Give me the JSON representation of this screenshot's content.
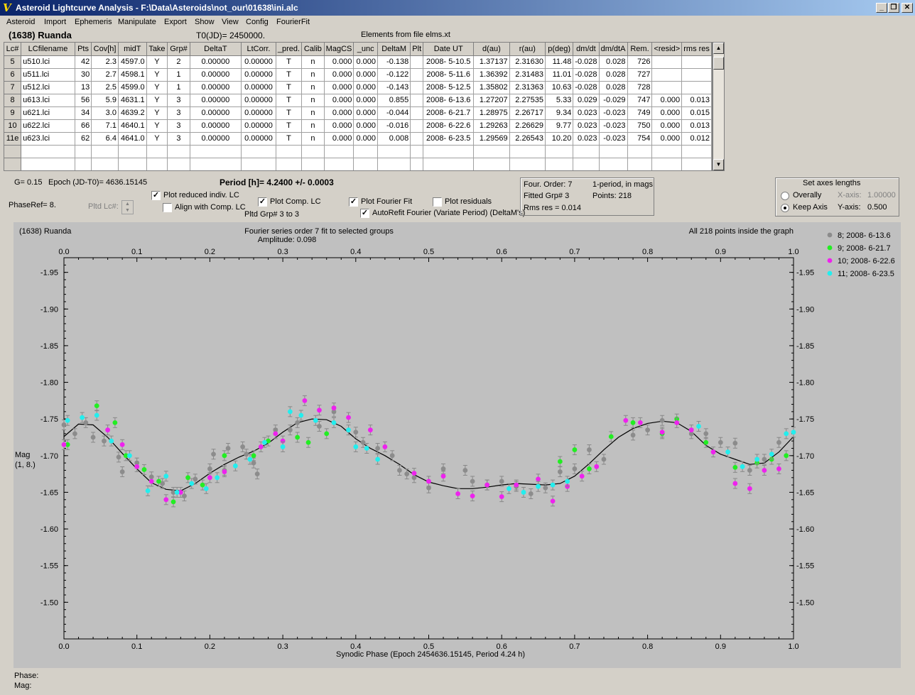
{
  "window": {
    "title": "Asteroid Lightcurve Analysis - F:\\Data\\Asteroids\\not_our\\01638\\ini.alc"
  },
  "menu": [
    "Asteroid",
    "Import",
    "Ephemeris",
    "Manipulate",
    "Export",
    "Show",
    "View",
    "Config",
    "FourierFit"
  ],
  "header": {
    "asteroid": "(1638) Ruanda",
    "t0": "T0(JD)= 2450000.",
    "elements": "Elements from file elms.xt"
  },
  "table": {
    "columns": [
      "Lc#",
      "LCfilename",
      "Pts",
      "Cov[h]",
      "midT",
      "Take",
      "Grp#",
      "DeltaT",
      "LtCorr.",
      "_pred.",
      "Calib",
      "MagCS",
      "_unc",
      "DeltaM",
      "Plt",
      "Date UT",
      "d(au)",
      "r(au)",
      "p(deg)",
      "dm/dt",
      "dm/dtA",
      "Rem.",
      "<resid>",
      "rms res"
    ],
    "rows": [
      [
        "5",
        "u510.lci",
        "42",
        "2.3",
        "4597.0",
        "Y",
        "2",
        "0.00000",
        "0.00000",
        "T",
        "n",
        "0.000",
        "0.000",
        "-0.138",
        "",
        "2008- 5-10.5",
        "1.37137",
        "2.31630",
        "11.48",
        "-0.028",
        "0.028",
        "726",
        "",
        ""
      ],
      [
        "6",
        "u511.lci",
        "30",
        "2.7",
        "4598.1",
        "Y",
        "1",
        "0.00000",
        "0.00000",
        "T",
        "n",
        "0.000",
        "0.000",
        "-0.122",
        "",
        "2008- 5-11.6",
        "1.36392",
        "2.31483",
        "11.01",
        "-0.028",
        "0.028",
        "727",
        "",
        ""
      ],
      [
        "7",
        "u512.lci",
        "13",
        "2.5",
        "4599.0",
        "Y",
        "1",
        "0.00000",
        "0.00000",
        "T",
        "n",
        "0.000",
        "0.000",
        "-0.143",
        "",
        "2008- 5-12.5",
        "1.35802",
        "2.31363",
        "10.63",
        "-0.028",
        "0.028",
        "728",
        "",
        ""
      ],
      [
        "8",
        "u613.lci",
        "56",
        "5.9",
        "4631.1",
        "Y",
        "3",
        "0.00000",
        "0.00000",
        "T",
        "n",
        "0.000",
        "0.000",
        "0.855",
        "",
        "2008- 6-13.6",
        "1.27207",
        "2.27535",
        "5.33",
        "0.029",
        "-0.029",
        "747",
        "0.000",
        "0.013"
      ],
      [
        "9",
        "u621.lci",
        "34",
        "3.0",
        "4639.2",
        "Y",
        "3",
        "0.00000",
        "0.00000",
        "T",
        "n",
        "0.000",
        "0.000",
        "-0.044",
        "",
        "2008- 6-21.7",
        "1.28975",
        "2.26717",
        "9.34",
        "0.023",
        "-0.023",
        "749",
        "0.000",
        "0.015"
      ],
      [
        "10",
        "u622.lci",
        "66",
        "7.1",
        "4640.1",
        "Y",
        "3",
        "0.00000",
        "0.00000",
        "T",
        "n",
        "0.000",
        "0.000",
        "-0.016",
        "",
        "2008- 6-22.6",
        "1.29263",
        "2.26629",
        "9.77",
        "0.023",
        "-0.023",
        "750",
        "0.000",
        "0.013"
      ],
      [
        "11e",
        "u623.lci",
        "62",
        "6.4",
        "4641.0",
        "Y",
        "3",
        "0.00000",
        "0.00000",
        "T",
        "n",
        "0.000",
        "0.000",
        "0.008",
        "",
        "2008- 6-23.5",
        "1.29569",
        "2.26543",
        "10.20",
        "0.023",
        "-0.023",
        "754",
        "0.000",
        "0.012"
      ],
      [
        "",
        "",
        "",
        "",
        "",
        "",
        "",
        "",
        "",
        "",
        "",
        "",
        "",
        "",
        "",
        "",
        "",
        "",
        "",
        "",
        "",
        "",
        "",
        ""
      ],
      [
        "",
        "",
        "",
        "",
        "",
        "",
        "",
        "",
        "",
        "",
        "",
        "",
        "",
        "",
        "",
        "",
        "",
        "",
        "",
        "",
        "",
        "",
        "",
        ""
      ]
    ]
  },
  "controls": {
    "g": "G= 0.15",
    "epoch": "Epoch (JD-T0)= 4636.15145",
    "period": "Period [h]= 4.2400 +/- 0.0003",
    "phaseref": "PhaseRef= 8.",
    "pltd_lc": "Pltd Lc#:",
    "plot_reduced": "Plot reduced indiv. LC",
    "align_comp": "Align with Comp. LC",
    "plot_comp": "Plot Comp. LC",
    "pltd_grp": "Pltd Grp#  3  to   3",
    "plot_fourier": "Plot Fourier Fit",
    "plot_resid": "Plot residuals",
    "autorefit": "AutoRefit Fourier (Variate Period) (DeltaM's)"
  },
  "fourier_info": {
    "order": "Four. Order:  7",
    "mode": "1-period, in mags",
    "fitted": "Fitted Grp# 3",
    "points": "Points: 218",
    "rms": "Rms res     = 0.014"
  },
  "axes_box": {
    "title": "Set axes lengths",
    "overally": "Overally",
    "keep": "Keep Axis",
    "xaxis_label": "X-axis:",
    "xaxis_value": "1.00000",
    "yaxis_label": "Y-axis:",
    "yaxis_value": "0.500"
  },
  "status": {
    "phase": "Phase:",
    "mag": "Mag:"
  },
  "colors": {
    "grey": "#8c8c8c",
    "green": "#22ee22",
    "magenta": "#ee22ee",
    "cyan": "#22eeee"
  },
  "chart_data": {
    "type": "scatter",
    "title": "(1638) Ruanda",
    "subtitle": "Fourier series order 7 fit to selected groups",
    "amplitude": "Amplitude: 0.098",
    "info": "All 218 points inside the graph",
    "xlabel": "Synodic Phase (Epoch 2454636.15145, Period 4.24 h)",
    "ylabel": "Mag",
    "ylabel2": "(1, 8.)",
    "xlim": [
      0,
      1
    ],
    "ylim": [
      -1.45,
      -1.97
    ],
    "xticks": [
      "0.0",
      "0.1",
      "0.2",
      "0.3",
      "0.4",
      "0.5",
      "0.6",
      "0.7",
      "0.8",
      "0.9",
      "1.0"
    ],
    "yticks": [
      "-1.95",
      "-1.90",
      "-1.85",
      "-1.80",
      "-1.75",
      "-1.70",
      "-1.65",
      "-1.60",
      "-1.55",
      "-1.50"
    ],
    "legend": [
      "8; 2008- 6-13.6",
      "9; 2008- 6-21.7",
      "10; 2008- 6-22.6",
      "11; 2008- 6-23.5"
    ],
    "fit": [
      [
        0,
        -1.726
      ],
      [
        0.02,
        -1.743
      ],
      [
        0.04,
        -1.742
      ],
      [
        0.06,
        -1.725
      ],
      [
        0.08,
        -1.703
      ],
      [
        0.1,
        -1.682
      ],
      [
        0.12,
        -1.663
      ],
      [
        0.14,
        -1.654
      ],
      [
        0.16,
        -1.652
      ],
      [
        0.18,
        -1.662
      ],
      [
        0.2,
        -1.676
      ],
      [
        0.22,
        -1.688
      ],
      [
        0.24,
        -1.698
      ],
      [
        0.26,
        -1.706
      ],
      [
        0.28,
        -1.717
      ],
      [
        0.3,
        -1.732
      ],
      [
        0.32,
        -1.745
      ],
      [
        0.34,
        -1.75
      ],
      [
        0.36,
        -1.749
      ],
      [
        0.38,
        -1.74
      ],
      [
        0.4,
        -1.723
      ],
      [
        0.42,
        -1.71
      ],
      [
        0.44,
        -1.7
      ],
      [
        0.46,
        -1.688
      ],
      [
        0.48,
        -1.674
      ],
      [
        0.5,
        -1.664
      ],
      [
        0.52,
        -1.659
      ],
      [
        0.54,
        -1.655
      ],
      [
        0.56,
        -1.655
      ],
      [
        0.58,
        -1.657
      ],
      [
        0.6,
        -1.66
      ],
      [
        0.62,
        -1.662
      ],
      [
        0.64,
        -1.661
      ],
      [
        0.66,
        -1.66
      ],
      [
        0.68,
        -1.662
      ],
      [
        0.7,
        -1.672
      ],
      [
        0.72,
        -1.689
      ],
      [
        0.74,
        -1.708
      ],
      [
        0.76,
        -1.725
      ],
      [
        0.78,
        -1.737
      ],
      [
        0.8,
        -1.744
      ],
      [
        0.82,
        -1.747
      ],
      [
        0.84,
        -1.745
      ],
      [
        0.86,
        -1.733
      ],
      [
        0.88,
        -1.714
      ],
      [
        0.9,
        -1.702
      ],
      [
        0.92,
        -1.695
      ],
      [
        0.94,
        -1.688
      ],
      [
        0.96,
        -1.69
      ],
      [
        0.98,
        -1.705
      ],
      [
        1.0,
        -1.726
      ]
    ],
    "series": [
      {
        "name": "8; 2008- 6-13.6",
        "color": "#8c8c8c",
        "points": [
          [
            0.0,
            -1.742
          ],
          [
            0.015,
            -1.73
          ],
          [
            0.03,
            -1.745
          ],
          [
            0.04,
            -1.725
          ],
          [
            0.055,
            -1.72
          ],
          [
            0.075,
            -1.698
          ],
          [
            0.08,
            -1.678
          ],
          [
            0.1,
            -1.69
          ],
          [
            0.12,
            -1.671
          ],
          [
            0.135,
            -1.662
          ],
          [
            0.15,
            -1.65
          ],
          [
            0.165,
            -1.645
          ],
          [
            0.18,
            -1.668
          ],
          [
            0.2,
            -1.682
          ],
          [
            0.205,
            -1.702
          ],
          [
            0.22,
            -1.68
          ],
          [
            0.225,
            -1.71
          ],
          [
            0.245,
            -1.712
          ],
          [
            0.25,
            -1.702
          ],
          [
            0.26,
            -1.69
          ],
          [
            0.265,
            -1.675
          ],
          [
            0.29,
            -1.735
          ],
          [
            0.31,
            -1.735
          ],
          [
            0.32,
            -1.745
          ],
          [
            0.35,
            -1.74
          ],
          [
            0.37,
            -1.76
          ],
          [
            0.4,
            -1.732
          ],
          [
            0.41,
            -1.718
          ],
          [
            0.43,
            -1.71
          ],
          [
            0.45,
            -1.7
          ],
          [
            0.46,
            -1.68
          ],
          [
            0.47,
            -1.675
          ],
          [
            0.48,
            -1.67
          ],
          [
            0.5,
            -1.656
          ],
          [
            0.52,
            -1.682
          ],
          [
            0.55,
            -1.68
          ],
          [
            0.56,
            -1.665
          ],
          [
            0.58,
            -1.66
          ],
          [
            0.6,
            -1.665
          ],
          [
            0.62,
            -1.658
          ],
          [
            0.64,
            -1.648
          ],
          [
            0.66,
            -1.656
          ],
          [
            0.68,
            -1.678
          ],
          [
            0.7,
            -1.682
          ],
          [
            0.72,
            -1.708
          ],
          [
            0.74,
            -1.695
          ],
          [
            0.78,
            -1.728
          ],
          [
            0.8,
            -1.735
          ],
          [
            0.82,
            -1.748
          ],
          [
            0.86,
            -1.73
          ],
          [
            0.88,
            -1.73
          ],
          [
            0.9,
            -1.718
          ],
          [
            0.92,
            -1.717
          ],
          [
            0.94,
            -1.68
          ],
          [
            0.96,
            -1.695
          ],
          [
            0.98,
            -1.718
          ]
        ]
      },
      {
        "name": "9; 2008- 6-21.7",
        "color": "#22ee22",
        "points": [
          [
            0.005,
            -1.715
          ],
          [
            0.045,
            -1.768
          ],
          [
            0.07,
            -1.745
          ],
          [
            0.085,
            -1.7
          ],
          [
            0.11,
            -1.681
          ],
          [
            0.13,
            -1.665
          ],
          [
            0.15,
            -1.637
          ],
          [
            0.17,
            -1.67
          ],
          [
            0.19,
            -1.66
          ],
          [
            0.22,
            -1.7
          ],
          [
            0.26,
            -1.7
          ],
          [
            0.28,
            -1.72
          ],
          [
            0.32,
            -1.725
          ],
          [
            0.335,
            -1.718
          ],
          [
            0.36,
            -1.73
          ],
          [
            0.68,
            -1.692
          ],
          [
            0.7,
            -1.708
          ],
          [
            0.72,
            -1.682
          ],
          [
            0.75,
            -1.726
          ],
          [
            0.78,
            -1.745
          ],
          [
            0.82,
            -1.73
          ],
          [
            0.84,
            -1.75
          ],
          [
            0.88,
            -1.718
          ],
          [
            0.92,
            -1.684
          ],
          [
            0.95,
            -1.69
          ],
          [
            0.97,
            -1.695
          ],
          [
            0.99,
            -1.7
          ]
        ]
      },
      {
        "name": "10; 2008- 6-22.6",
        "color": "#ee22ee",
        "points": [
          [
            0.0,
            -1.715
          ],
          [
            0.06,
            -1.735
          ],
          [
            0.08,
            -1.715
          ],
          [
            0.1,
            -1.685
          ],
          [
            0.12,
            -1.665
          ],
          [
            0.14,
            -1.64
          ],
          [
            0.16,
            -1.65
          ],
          [
            0.2,
            -1.67
          ],
          [
            0.22,
            -1.678
          ],
          [
            0.27,
            -1.712
          ],
          [
            0.29,
            -1.73
          ],
          [
            0.3,
            -1.72
          ],
          [
            0.33,
            -1.775
          ],
          [
            0.35,
            -1.762
          ],
          [
            0.37,
            -1.765
          ],
          [
            0.39,
            -1.752
          ],
          [
            0.42,
            -1.735
          ],
          [
            0.44,
            -1.712
          ],
          [
            0.48,
            -1.676
          ],
          [
            0.5,
            -1.665
          ],
          [
            0.52,
            -1.672
          ],
          [
            0.54,
            -1.648
          ],
          [
            0.56,
            -1.645
          ],
          [
            0.58,
            -1.66
          ],
          [
            0.6,
            -1.644
          ],
          [
            0.62,
            -1.66
          ],
          [
            0.65,
            -1.668
          ],
          [
            0.67,
            -1.638
          ],
          [
            0.69,
            -1.658
          ],
          [
            0.71,
            -1.672
          ],
          [
            0.73,
            -1.685
          ],
          [
            0.77,
            -1.748
          ],
          [
            0.79,
            -1.745
          ],
          [
            0.82,
            -1.732
          ],
          [
            0.84,
            -1.745
          ],
          [
            0.86,
            -1.735
          ],
          [
            0.89,
            -1.705
          ],
          [
            0.92,
            -1.662
          ],
          [
            0.94,
            -1.655
          ],
          [
            0.96,
            -1.68
          ],
          [
            0.98,
            -1.682
          ]
        ]
      },
      {
        "name": "11; 2008- 6-23.5",
        "color": "#22eeee",
        "points": [
          [
            0.005,
            -1.748
          ],
          [
            0.025,
            -1.752
          ],
          [
            0.045,
            -1.755
          ],
          [
            0.065,
            -1.72
          ],
          [
            0.09,
            -1.7
          ],
          [
            0.115,
            -1.652
          ],
          [
            0.14,
            -1.672
          ],
          [
            0.155,
            -1.65
          ],
          [
            0.175,
            -1.662
          ],
          [
            0.195,
            -1.655
          ],
          [
            0.21,
            -1.67
          ],
          [
            0.235,
            -1.686
          ],
          [
            0.255,
            -1.695
          ],
          [
            0.275,
            -1.718
          ],
          [
            0.3,
            -1.712
          ],
          [
            0.31,
            -1.76
          ],
          [
            0.325,
            -1.755
          ],
          [
            0.345,
            -1.748
          ],
          [
            0.37,
            -1.745
          ],
          [
            0.39,
            -1.735
          ],
          [
            0.4,
            -1.712
          ],
          [
            0.415,
            -1.71
          ],
          [
            0.43,
            -1.695
          ],
          [
            0.61,
            -1.655
          ],
          [
            0.63,
            -1.65
          ],
          [
            0.65,
            -1.658
          ],
          [
            0.67,
            -1.66
          ],
          [
            0.69,
            -1.665
          ],
          [
            0.87,
            -1.74
          ],
          [
            0.91,
            -1.705
          ],
          [
            0.93,
            -1.685
          ],
          [
            0.95,
            -1.695
          ],
          [
            0.97,
            -1.702
          ],
          [
            0.99,
            -1.73
          ],
          [
            1.0,
            -1.732
          ]
        ]
      }
    ]
  }
}
